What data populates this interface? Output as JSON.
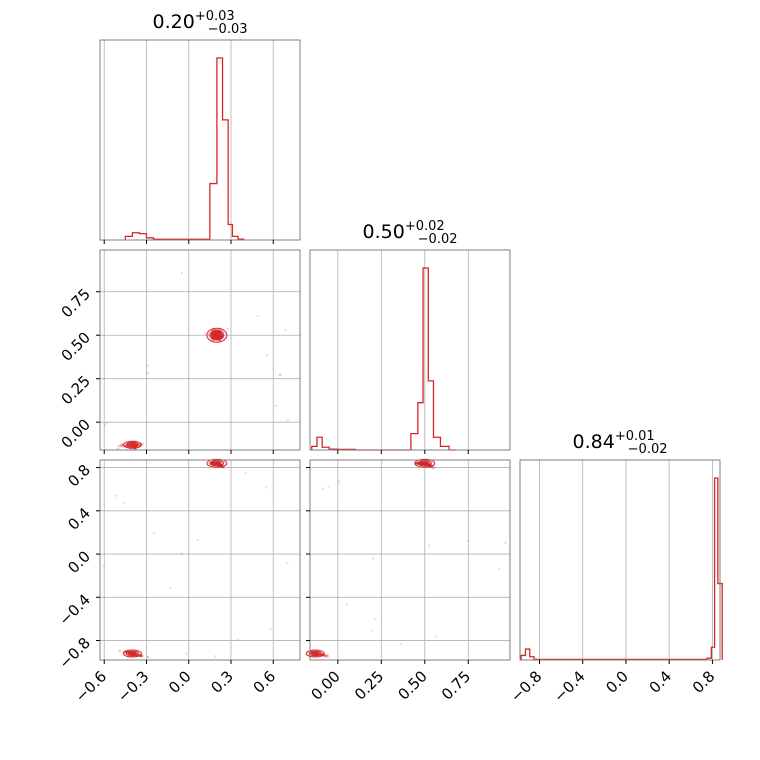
{
  "chart_data": {
    "type": "corner",
    "color": "#d62728",
    "grid": true,
    "parameters": [
      {
        "median": "0.20",
        "plus": "+0.03",
        "minus": "−0.03",
        "range": [
          -0.63,
          0.79
        ]
      },
      {
        "median": "0.50",
        "plus": "+0.02",
        "minus": "−0.02",
        "range": [
          -0.16,
          0.99
        ]
      },
      {
        "median": "0.84",
        "plus": "+0.01",
        "minus": "−0.02",
        "range": [
          -0.98,
          0.87
        ]
      }
    ],
    "tick_labels": {
      "p0": {
        "values": [
          -0.6,
          -0.3,
          0.0,
          0.3,
          0.6
        ],
        "labels": [
          "−0.6",
          "−0.3",
          "0.0",
          "0.3",
          "0.6"
        ]
      },
      "p1": {
        "values": [
          0.0,
          0.25,
          0.5,
          0.75
        ],
        "labels": [
          "0.00",
          "0.25",
          "0.50",
          "0.75"
        ]
      },
      "p2": {
        "values": [
          -0.8,
          -0.4,
          0.0,
          0.4,
          0.8
        ],
        "labels": [
          "−0.8",
          "−0.4",
          "0.0",
          "0.4",
          "0.8"
        ]
      }
    },
    "histograms": [
      {
        "param": 0,
        "bins": [
          -0.45,
          -0.4,
          -0.35,
          -0.3,
          -0.25,
          0.15,
          0.2,
          0.24,
          0.28,
          0.31,
          0.35
        ],
        "counts": [
          0.02,
          0.04,
          0.035,
          0.012,
          0.004,
          0.31,
          1.0,
          0.66,
          0.085,
          0.02,
          0.005
        ]
      },
      {
        "param": 1,
        "bins": [
          -0.15,
          -0.12,
          -0.09,
          -0.05,
          0.0,
          0.1,
          0.42,
          0.46,
          0.49,
          0.52,
          0.55,
          0.59,
          0.64
        ],
        "counts": [
          0.02,
          0.07,
          0.015,
          0.005,
          0.003,
          0.0,
          0.09,
          0.26,
          1.0,
          0.38,
          0.07,
          0.02,
          0.0
        ]
      },
      {
        "param": 2,
        "bins": [
          -0.97,
          -0.93,
          -0.89,
          -0.85,
          0.75,
          0.79,
          0.82,
          0.85
        ],
        "counts": [
          0.025,
          0.06,
          0.018,
          0.003,
          0.01,
          0.07,
          1.0,
          0.42
        ]
      }
    ],
    "modes": [
      {
        "center": [
          0.2,
          0.5,
          0.84
        ],
        "weight": 0.92
      },
      {
        "center": [
          -0.4,
          -0.13,
          -0.92
        ],
        "weight": 0.08
      }
    ]
  }
}
